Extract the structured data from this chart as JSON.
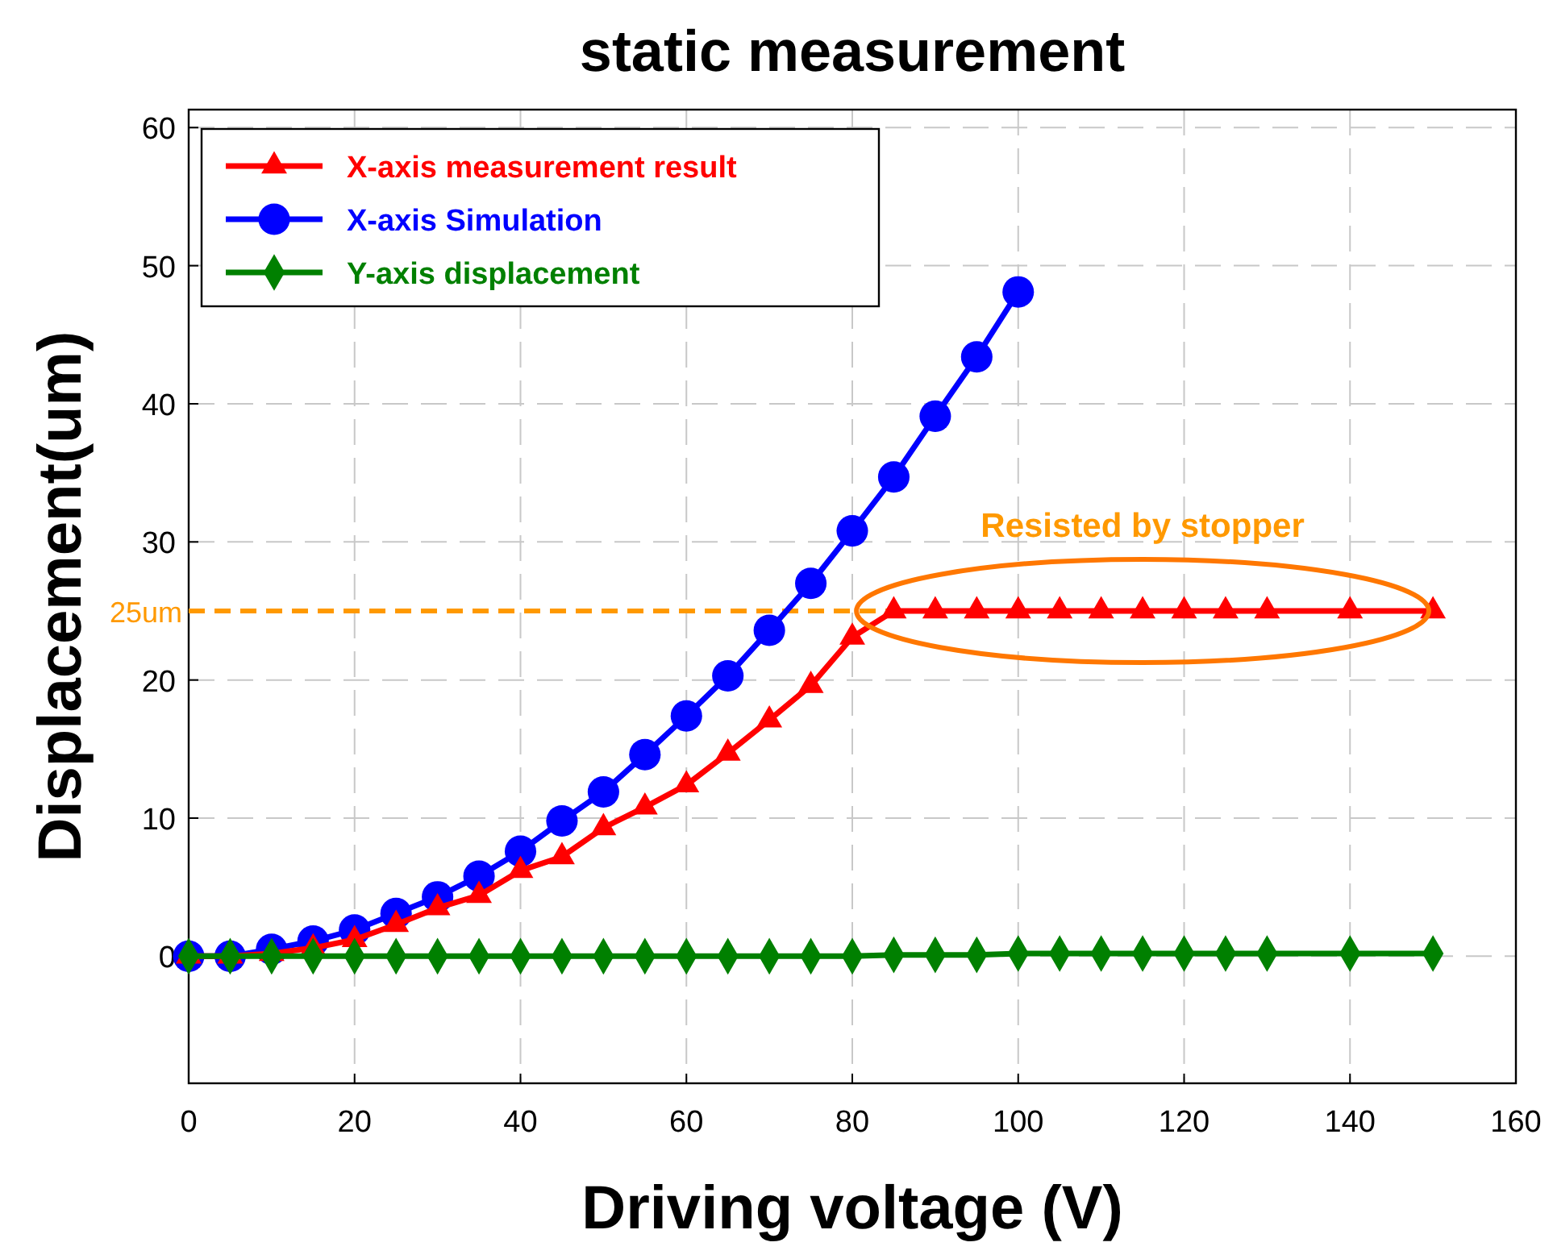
{
  "chart_data": {
    "type": "line",
    "title": "static measurement",
    "xlabel": "Driving voltage (V)",
    "ylabel": "Displacement(um)",
    "xlim": [
      0,
      160
    ],
    "xticks": [
      0,
      20,
      40,
      60,
      80,
      100,
      120,
      140,
      160
    ],
    "ylim": [
      -9.2,
      61.3
    ],
    "yticks": [
      0,
      10,
      20,
      30,
      40,
      50,
      60
    ],
    "grid": true,
    "legend": "top left",
    "line_style": "solid",
    "series": [
      {
        "name": "X-axis measurement result",
        "color": "#ff0000",
        "marker": "triangle",
        "x": [
          0,
          5,
          10,
          15,
          20,
          25,
          30,
          35,
          40,
          45,
          50,
          55,
          60,
          65,
          70,
          75,
          80,
          85,
          90,
          95,
          100,
          105,
          110,
          115,
          120,
          125,
          130,
          140,
          150
        ],
        "values": [
          0,
          0,
          0.2,
          0.6,
          1.2,
          2.3,
          3.5,
          4.4,
          6.2,
          7.2,
          9.3,
          10.8,
          12.4,
          14.7,
          17.1,
          19.6,
          23.1,
          25,
          25,
          25,
          25,
          25,
          25,
          25,
          25,
          25,
          25,
          25,
          25
        ]
      },
      {
        "name": "X-axis Simulation",
        "color": "#0000ff",
        "marker": "circle",
        "x": [
          0,
          5,
          10,
          15,
          20,
          25,
          30,
          35,
          40,
          45,
          50,
          55,
          60,
          65,
          70,
          75,
          80,
          85,
          90,
          95,
          100
        ],
        "values": [
          0,
          0,
          0.5,
          1.1,
          1.9,
          3.1,
          4.3,
          5.8,
          7.6,
          9.8,
          11.9,
          14.6,
          17.4,
          20.3,
          23.6,
          27.0,
          30.8,
          34.7,
          39.1,
          43.4,
          48.1
        ]
      },
      {
        "name": "Y-axis displacement",
        "color": "#008000",
        "marker": "diamond",
        "x": [
          0,
          5,
          10,
          15,
          20,
          25,
          30,
          35,
          40,
          45,
          50,
          55,
          60,
          65,
          70,
          75,
          80,
          85,
          90,
          95,
          100,
          105,
          110,
          115,
          120,
          125,
          130,
          140,
          150
        ],
        "values": [
          0,
          0,
          0,
          0,
          0,
          0,
          0,
          0,
          0,
          0,
          0,
          0,
          0,
          0,
          0,
          0,
          0,
          0.1,
          0.1,
          0.1,
          0.2,
          0.2,
          0.2,
          0.2,
          0.2,
          0.2,
          0.2,
          0.2,
          0.2
        ]
      }
    ],
    "ref_lines": [
      {
        "axis": "y",
        "value": 25,
        "label": "25um",
        "color": "#ff9900",
        "line_style": "dashed"
      }
    ],
    "annotations": [
      {
        "text": "Resisted by stopper",
        "x": 115,
        "y": 25
      }
    ]
  }
}
